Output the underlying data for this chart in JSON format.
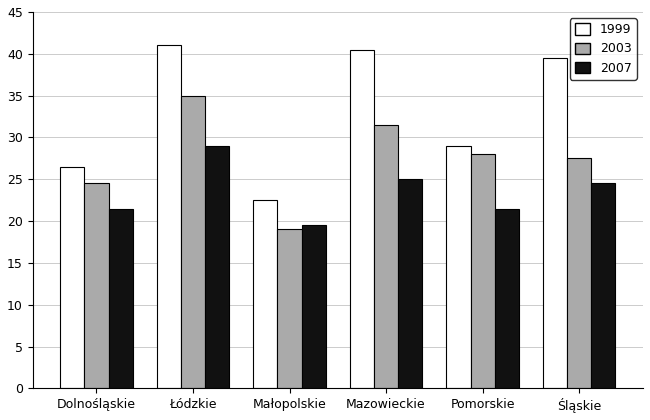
{
  "categories": [
    "Dolnośląskie",
    "Łódzkie",
    "Małopolskie",
    "Mazowieckie",
    "Pomorskie",
    "Śląskie"
  ],
  "values_1999": [
    26.5,
    41.0,
    22.5,
    40.5,
    29.0,
    39.5
  ],
  "values_2003": [
    24.5,
    35.0,
    19.0,
    31.5,
    28.0,
    27.5
  ],
  "values_2007": [
    21.5,
    29.0,
    19.5,
    25.0,
    21.5,
    24.5
  ],
  "color_1999": "#ffffff",
  "color_2003": "#aaaaaa",
  "color_2007": "#111111",
  "edge_color": "#000000",
  "ylim": [
    0,
    45
  ],
  "yticks": [
    0,
    5,
    10,
    15,
    20,
    25,
    30,
    35,
    40,
    45
  ],
  "legend_labels": [
    "1999",
    "2003",
    "2007"
  ],
  "bar_width": 0.25,
  "grid_color": "#cccccc",
  "figure_bg": "#ffffff",
  "axes_bg": "#ffffff"
}
